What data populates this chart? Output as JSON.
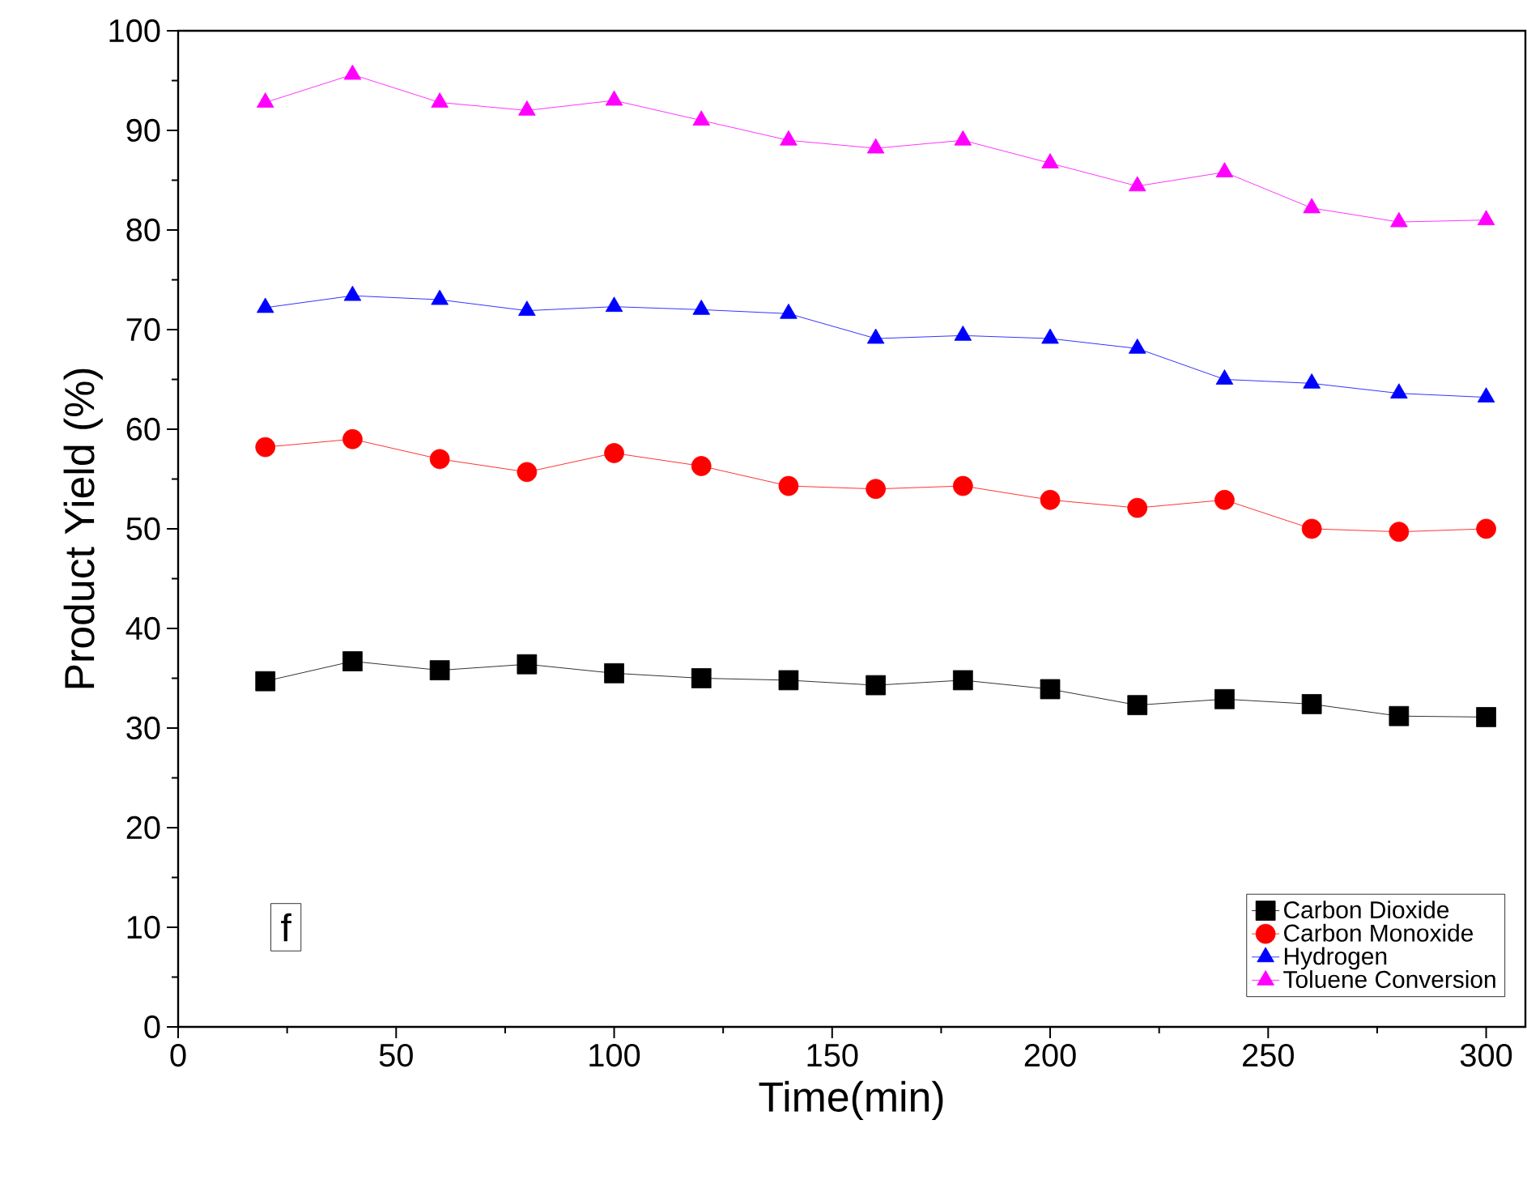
{
  "chart_data": {
    "type": "line",
    "xlabel": "Time(min)",
    "ylabel": "Product Yield (%)",
    "x": [
      20,
      40,
      60,
      80,
      100,
      120,
      140,
      160,
      180,
      200,
      220,
      240,
      260,
      280,
      300
    ],
    "xlim": [
      0,
      309
    ],
    "xticks": [
      0,
      50,
      100,
      150,
      200,
      250,
      300
    ],
    "ylim": [
      0,
      100
    ],
    "yticks": [
      0,
      10,
      20,
      30,
      40,
      50,
      60,
      70,
      80,
      90,
      100
    ],
    "grid": false,
    "legend": "bottom right",
    "line_style": "solid",
    "annotations": [
      "f"
    ],
    "series": [
      {
        "name": "Carbon Dioxide",
        "color": "#000000",
        "marker": "square",
        "values": [
          34.7,
          36.7,
          35.8,
          36.4,
          35.5,
          35.0,
          34.8,
          34.3,
          34.8,
          33.9,
          32.3,
          32.9,
          32.4,
          31.2,
          31.1
        ]
      },
      {
        "name": "Carbon Monoxide",
        "color": "#ff0000",
        "marker": "circle",
        "values": [
          58.2,
          59.0,
          57.0,
          55.7,
          57.6,
          56.3,
          54.3,
          54.0,
          54.3,
          52.9,
          52.1,
          52.9,
          50.0,
          49.7,
          50.0
        ]
      },
      {
        "name": "Hydrogen",
        "color": "#0000ff",
        "marker": "triangle",
        "values": [
          72.2,
          73.4,
          73.0,
          71.9,
          72.3,
          72.0,
          71.6,
          69.1,
          69.4,
          69.1,
          68.1,
          65.0,
          64.6,
          63.6,
          63.2
        ]
      },
      {
        "name": "Toluene Conversion",
        "color": "#ff00ff",
        "marker": "triangle down",
        "values": [
          92.8,
          95.6,
          92.8,
          92.0,
          93.0,
          91.0,
          89.0,
          88.2,
          89.0,
          86.7,
          84.4,
          85.8,
          82.2,
          80.8,
          81.0
        ]
      }
    ]
  }
}
